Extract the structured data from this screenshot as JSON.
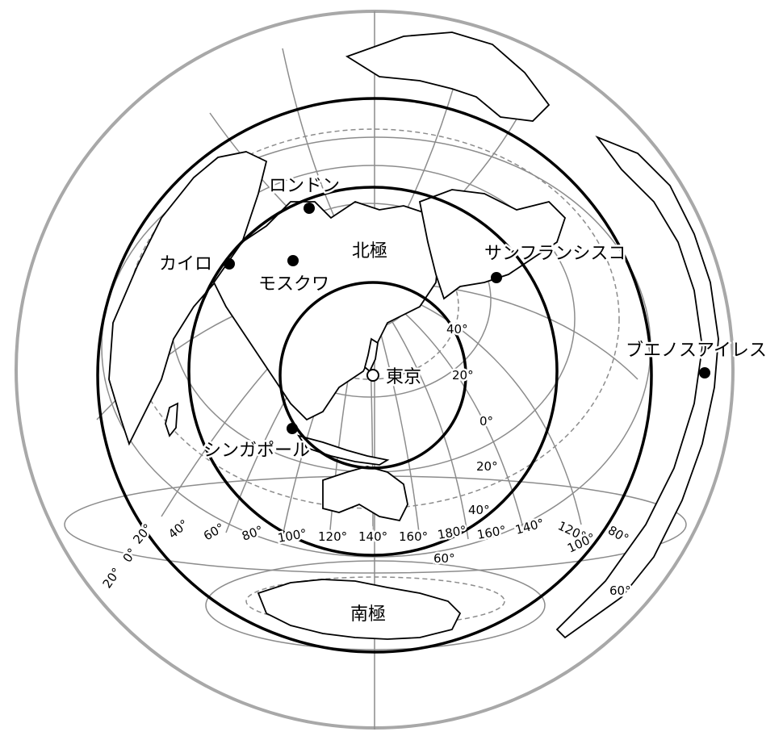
{
  "map": {
    "projection": "azimuthal equidistant centered on Tokyo",
    "colors": {
      "outer_ring": "#a8a8a8",
      "grid": "#8c8c8c",
      "coast": "#000000",
      "borders": "#9a9a9a",
      "distance_rings": "#000000"
    },
    "cities": [
      {
        "id": "tokyo",
        "label": "東京",
        "marker": "open"
      },
      {
        "id": "london",
        "label": "ロンドン",
        "marker": "filled"
      },
      {
        "id": "cairo",
        "label": "カイロ",
        "marker": "filled"
      },
      {
        "id": "moscow",
        "label": "モスクワ",
        "marker": "filled"
      },
      {
        "id": "sanfrancisco",
        "label": "サンフランシスコ",
        "marker": "filled"
      },
      {
        "id": "buenosaires",
        "label": "ブエノスアイレス",
        "marker": "filled"
      },
      {
        "id": "singapore",
        "label": "シンガポール",
        "marker": "filled"
      }
    ],
    "poles": {
      "north": "北極",
      "south": "南極"
    },
    "latitude_labels": [
      "40°",
      "20°",
      "0°",
      "20°",
      "40°",
      "60°",
      "60°"
    ],
    "longitude_labels": [
      "20°",
      "0°",
      "20°",
      "40°",
      "60°",
      "80°",
      "100°",
      "120°",
      "140°",
      "160°",
      "180°",
      "160°",
      "140°",
      "120°",
      "100°",
      "80°"
    ]
  }
}
